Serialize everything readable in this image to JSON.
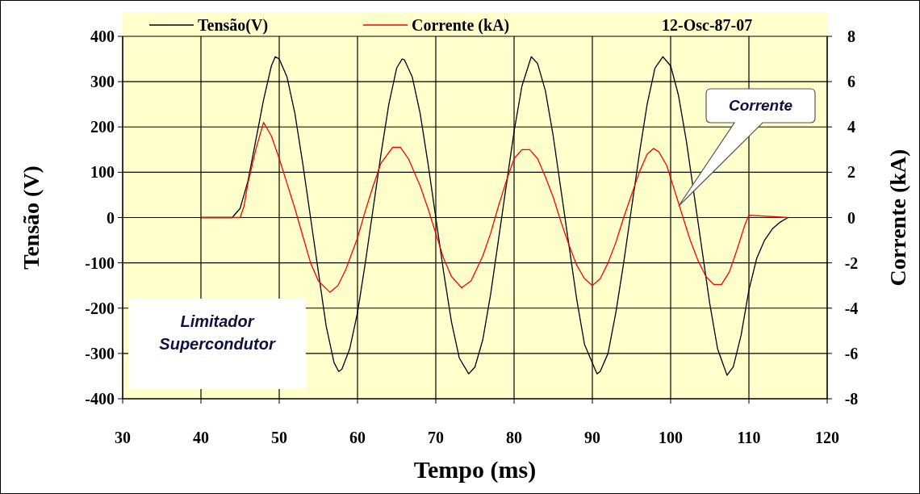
{
  "chart_data": {
    "type": "line",
    "xlabel": "Tempo (ms)",
    "ylabel": "Tensão (V)",
    "y2label": "Corrente (kA)",
    "xlim": [
      30,
      120
    ],
    "xticks": [
      30,
      40,
      50,
      60,
      70,
      80,
      90,
      100,
      110,
      120
    ],
    "ylim": [
      -400,
      400
    ],
    "yticks": [
      -400,
      -300,
      -200,
      -100,
      0,
      100,
      200,
      300,
      400
    ],
    "y2lim": [
      -8,
      8
    ],
    "y2ticks": [
      -8,
      -6,
      -4,
      -2,
      0,
      2,
      4,
      6,
      8
    ],
    "grid": true,
    "legend": "top",
    "line_style": "solid",
    "series": [
      {
        "name": "Tensão(V)",
        "color": "#000000",
        "x": [
          40,
          44,
          45,
          46,
          47,
          48,
          49,
          49.5,
          50,
          51,
          52,
          53,
          54,
          55,
          56,
          57,
          57.6,
          58,
          59,
          60,
          61,
          62,
          63,
          64,
          65,
          65.7,
          66,
          67,
          68,
          69,
          70,
          71,
          72,
          73,
          74.2,
          75,
          76,
          77,
          78,
          79,
          80,
          81,
          82.2,
          83,
          84,
          85,
          86,
          87,
          88,
          89,
          90.6,
          91,
          92,
          93,
          94,
          95,
          96,
          97,
          98,
          99,
          100,
          101,
          102,
          103,
          104,
          105,
          106,
          107.2,
          108,
          109,
          110,
          111,
          112,
          113,
          114,
          115
        ],
        "values": [
          0,
          0,
          20,
          80,
          170,
          260,
          335,
          355,
          350,
          310,
          230,
          120,
          0,
          -120,
          -240,
          -320,
          -340,
          -335,
          -290,
          -210,
          -100,
          20,
          140,
          250,
          330,
          350,
          348,
          310,
          230,
          120,
          0,
          -120,
          -230,
          -310,
          -345,
          -330,
          -270,
          -170,
          -50,
          70,
          190,
          290,
          355,
          340,
          280,
          180,
          60,
          -60,
          -180,
          -280,
          -345,
          -340,
          -300,
          -210,
          -100,
          20,
          140,
          250,
          330,
          355,
          335,
          270,
          170,
          50,
          -70,
          -190,
          -290,
          -348,
          -330,
          -260,
          -160,
          -90,
          -50,
          -25,
          -10,
          0
        ]
      },
      {
        "name": "Corrente (kA)",
        "color": "#ff0000",
        "axis": "y2",
        "x": [
          40,
          45,
          45.5,
          46,
          47,
          48,
          49,
          50,
          51,
          52,
          53,
          54,
          55,
          56.5,
          57.5,
          58.5,
          60,
          61,
          62,
          63,
          64.5,
          65.5,
          66.5,
          68,
          69,
          70,
          71,
          72,
          73.3,
          74.5,
          76,
          77,
          78,
          79,
          80,
          81,
          82,
          83,
          84,
          85,
          86,
          87,
          88,
          89,
          90,
          91,
          92,
          93,
          94,
          95,
          96,
          97,
          97.8,
          98.5,
          99.5,
          100.5,
          101.5,
          102.5,
          103.5,
          104.5,
          105.5,
          106.5,
          107.5,
          108.5,
          109.5,
          110,
          115
        ],
        "values": [
          0,
          0,
          0.5,
          1.5,
          3.0,
          4.2,
          3.6,
          2.6,
          1.5,
          0.4,
          -0.8,
          -2.0,
          -2.8,
          -3.3,
          -3.0,
          -2.3,
          -0.9,
          0.3,
          1.4,
          2.4,
          3.1,
          3.1,
          2.6,
          1.4,
          0.4,
          -0.7,
          -1.8,
          -2.6,
          -3.1,
          -2.8,
          -1.7,
          -0.7,
          0.5,
          1.6,
          2.6,
          3.0,
          3.0,
          2.6,
          1.8,
          0.9,
          -0.2,
          -1.2,
          -2.1,
          -2.7,
          -3.0,
          -2.7,
          -2.0,
          -1.1,
          0,
          1.0,
          2.0,
          2.8,
          3.05,
          2.9,
          2.3,
          1.2,
          0.1,
          -1.0,
          -1.9,
          -2.6,
          -2.95,
          -2.95,
          -2.4,
          -1.4,
          -0.3,
          0.1,
          0
        ]
      }
    ],
    "annotations": [
      "12-Osc-87-07",
      "Corrente",
      "Limitador Supercondutor"
    ]
  }
}
